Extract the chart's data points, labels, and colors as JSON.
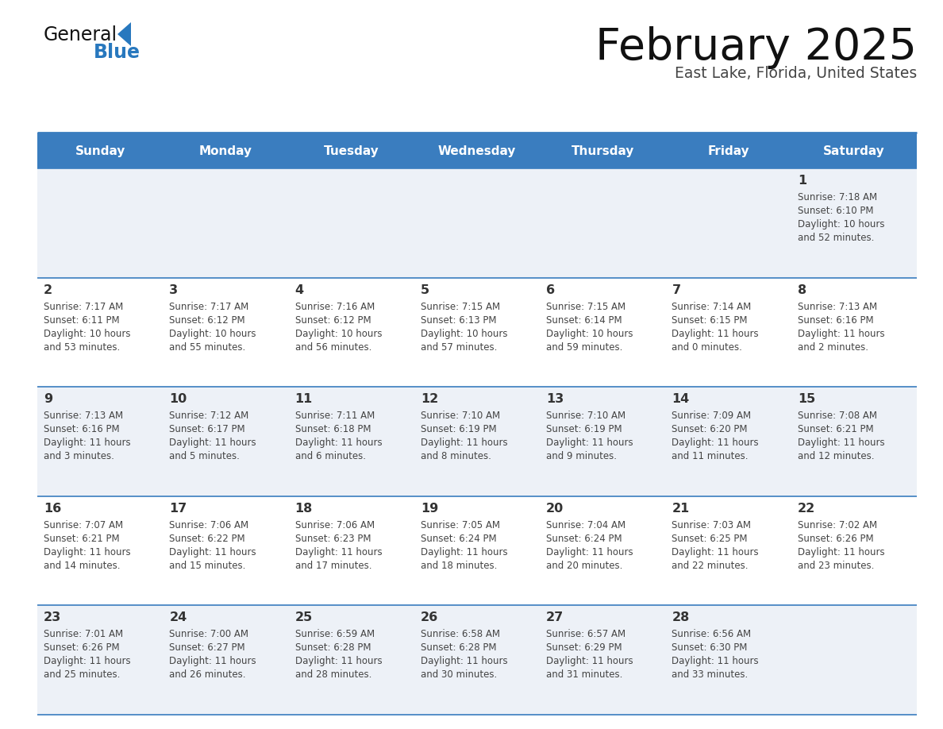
{
  "title": "February 2025",
  "subtitle": "East Lake, Florida, United States",
  "header_bg": "#3a7dbf",
  "header_text_color": "#ffffff",
  "days_of_week": [
    "Sunday",
    "Monday",
    "Tuesday",
    "Wednesday",
    "Thursday",
    "Friday",
    "Saturday"
  ],
  "odd_row_bg": "#edf1f7",
  "even_row_bg": "#ffffff",
  "cell_border_color": "#3a7dbf",
  "day_number_color": "#333333",
  "info_text_color": "#444444",
  "title_color": "#111111",
  "subtitle_color": "#444444",
  "logo_general_color": "#111111",
  "logo_blue_color": "#2878be",
  "calendar_data": [
    [
      {
        "day": null,
        "sunrise": null,
        "sunset": null,
        "daylight": null
      },
      {
        "day": null,
        "sunrise": null,
        "sunset": null,
        "daylight": null
      },
      {
        "day": null,
        "sunrise": null,
        "sunset": null,
        "daylight": null
      },
      {
        "day": null,
        "sunrise": null,
        "sunset": null,
        "daylight": null
      },
      {
        "day": null,
        "sunrise": null,
        "sunset": null,
        "daylight": null
      },
      {
        "day": null,
        "sunrise": null,
        "sunset": null,
        "daylight": null
      },
      {
        "day": 1,
        "sunrise": "7:18 AM",
        "sunset": "6:10 PM",
        "daylight": "10 hours\nand 52 minutes."
      }
    ],
    [
      {
        "day": 2,
        "sunrise": "7:17 AM",
        "sunset": "6:11 PM",
        "daylight": "10 hours\nand 53 minutes."
      },
      {
        "day": 3,
        "sunrise": "7:17 AM",
        "sunset": "6:12 PM",
        "daylight": "10 hours\nand 55 minutes."
      },
      {
        "day": 4,
        "sunrise": "7:16 AM",
        "sunset": "6:12 PM",
        "daylight": "10 hours\nand 56 minutes."
      },
      {
        "day": 5,
        "sunrise": "7:15 AM",
        "sunset": "6:13 PM",
        "daylight": "10 hours\nand 57 minutes."
      },
      {
        "day": 6,
        "sunrise": "7:15 AM",
        "sunset": "6:14 PM",
        "daylight": "10 hours\nand 59 minutes."
      },
      {
        "day": 7,
        "sunrise": "7:14 AM",
        "sunset": "6:15 PM",
        "daylight": "11 hours\nand 0 minutes."
      },
      {
        "day": 8,
        "sunrise": "7:13 AM",
        "sunset": "6:16 PM",
        "daylight": "11 hours\nand 2 minutes."
      }
    ],
    [
      {
        "day": 9,
        "sunrise": "7:13 AM",
        "sunset": "6:16 PM",
        "daylight": "11 hours\nand 3 minutes."
      },
      {
        "day": 10,
        "sunrise": "7:12 AM",
        "sunset": "6:17 PM",
        "daylight": "11 hours\nand 5 minutes."
      },
      {
        "day": 11,
        "sunrise": "7:11 AM",
        "sunset": "6:18 PM",
        "daylight": "11 hours\nand 6 minutes."
      },
      {
        "day": 12,
        "sunrise": "7:10 AM",
        "sunset": "6:19 PM",
        "daylight": "11 hours\nand 8 minutes."
      },
      {
        "day": 13,
        "sunrise": "7:10 AM",
        "sunset": "6:19 PM",
        "daylight": "11 hours\nand 9 minutes."
      },
      {
        "day": 14,
        "sunrise": "7:09 AM",
        "sunset": "6:20 PM",
        "daylight": "11 hours\nand 11 minutes."
      },
      {
        "day": 15,
        "sunrise": "7:08 AM",
        "sunset": "6:21 PM",
        "daylight": "11 hours\nand 12 minutes."
      }
    ],
    [
      {
        "day": 16,
        "sunrise": "7:07 AM",
        "sunset": "6:21 PM",
        "daylight": "11 hours\nand 14 minutes."
      },
      {
        "day": 17,
        "sunrise": "7:06 AM",
        "sunset": "6:22 PM",
        "daylight": "11 hours\nand 15 minutes."
      },
      {
        "day": 18,
        "sunrise": "7:06 AM",
        "sunset": "6:23 PM",
        "daylight": "11 hours\nand 17 minutes."
      },
      {
        "day": 19,
        "sunrise": "7:05 AM",
        "sunset": "6:24 PM",
        "daylight": "11 hours\nand 18 minutes."
      },
      {
        "day": 20,
        "sunrise": "7:04 AM",
        "sunset": "6:24 PM",
        "daylight": "11 hours\nand 20 minutes."
      },
      {
        "day": 21,
        "sunrise": "7:03 AM",
        "sunset": "6:25 PM",
        "daylight": "11 hours\nand 22 minutes."
      },
      {
        "day": 22,
        "sunrise": "7:02 AM",
        "sunset": "6:26 PM",
        "daylight": "11 hours\nand 23 minutes."
      }
    ],
    [
      {
        "day": 23,
        "sunrise": "7:01 AM",
        "sunset": "6:26 PM",
        "daylight": "11 hours\nand 25 minutes."
      },
      {
        "day": 24,
        "sunrise": "7:00 AM",
        "sunset": "6:27 PM",
        "daylight": "11 hours\nand 26 minutes."
      },
      {
        "day": 25,
        "sunrise": "6:59 AM",
        "sunset": "6:28 PM",
        "daylight": "11 hours\nand 28 minutes."
      },
      {
        "day": 26,
        "sunrise": "6:58 AM",
        "sunset": "6:28 PM",
        "daylight": "11 hours\nand 30 minutes."
      },
      {
        "day": 27,
        "sunrise": "6:57 AM",
        "sunset": "6:29 PM",
        "daylight": "11 hours\nand 31 minutes."
      },
      {
        "day": 28,
        "sunrise": "6:56 AM",
        "sunset": "6:30 PM",
        "daylight": "11 hours\nand 33 minutes."
      },
      {
        "day": null,
        "sunrise": null,
        "sunset": null,
        "daylight": null
      }
    ]
  ]
}
